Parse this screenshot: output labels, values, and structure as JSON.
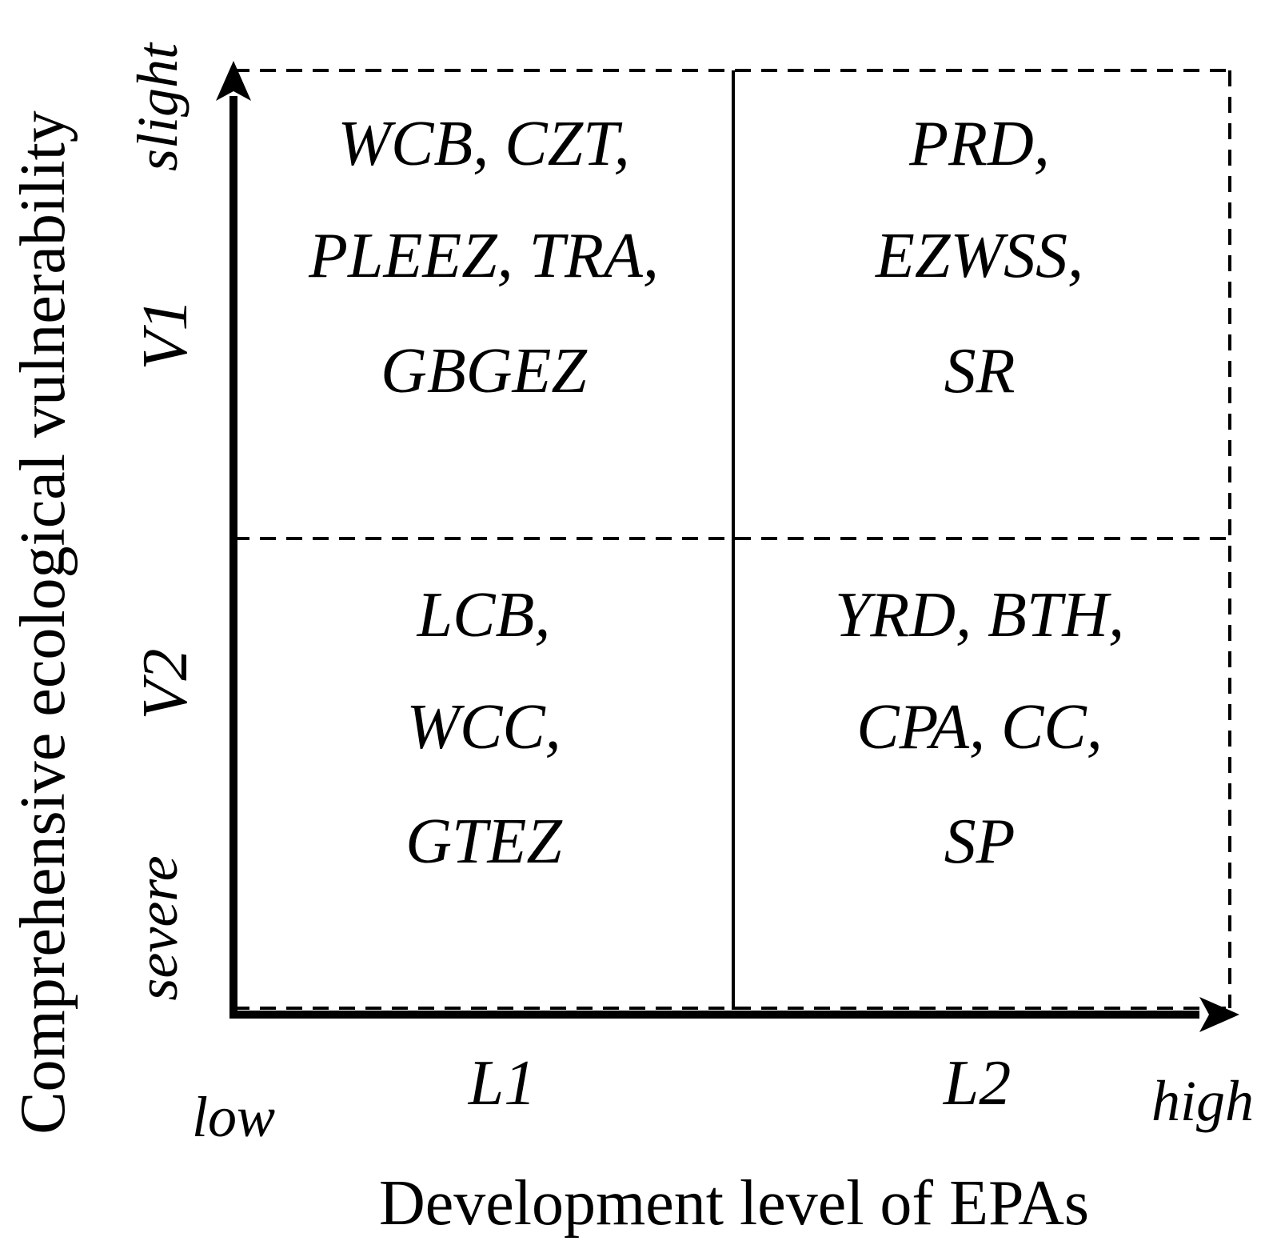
{
  "axes": {
    "x_title": "Development level of EPAs",
    "y_title": "Comprehensive ecological vulnerability",
    "x_low": "low",
    "x_high": "high",
    "y_top": "slight",
    "y_bottom": "severe",
    "x_levels": [
      "L1",
      "L2"
    ],
    "y_levels": [
      "V1",
      "V2"
    ]
  },
  "quadrants": {
    "top_left": [
      "WCB, CZT,",
      "PLEEZ, TRA,",
      "GBGEZ"
    ],
    "top_right": [
      "PRD,",
      "EZWSS,",
      "SR"
    ],
    "bottom_left": [
      "LCB,",
      "WCC,",
      "GTEZ"
    ],
    "bottom_right": [
      "YRD, BTH,",
      "CPA, CC,",
      "SP"
    ]
  }
}
